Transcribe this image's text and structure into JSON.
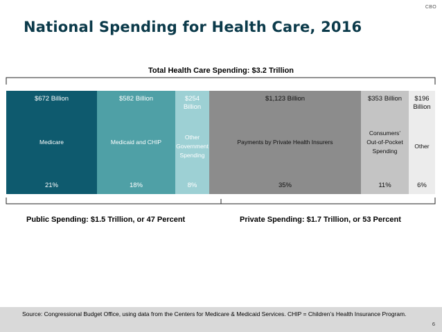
{
  "header": {
    "cbo_tag": "CBO",
    "title": "National Spending for Health Care, 2016"
  },
  "chart_data": {
    "type": "bar",
    "orientation": "stacked-horizontal-100",
    "title": "National Spending for Health Care, 2016",
    "total_label": "Total Health Care Spending: $3.2 Trillion",
    "unit": "billions of dollars",
    "segments": [
      {
        "name": "Medicare",
        "amount_label": "$672 Billion",
        "amount": 672,
        "percent": 21,
        "percent_label": "21%",
        "group": "public",
        "color": "#0e5a6e"
      },
      {
        "name": "Medicaid and CHIP",
        "amount_label": "$582 Billion",
        "amount": 582,
        "percent": 18,
        "percent_label": "18%",
        "group": "public",
        "color": "#4fa0a6"
      },
      {
        "name": "Other Government Spending",
        "name_lines": [
          "Other",
          "Government",
          "Spending"
        ],
        "amount_label": "$254 Billion",
        "amount": 254,
        "percent": 8,
        "percent_label": "8%",
        "group": "public",
        "color": "#9dd0d4"
      },
      {
        "name": "Payments by Private Health Insurers",
        "amount_label": "$1,123 Billion",
        "amount": 1123,
        "percent": 35,
        "percent_label": "35%",
        "group": "private",
        "color": "#8c8c8c"
      },
      {
        "name": "Consumers' Out-of-Pocket Spending",
        "name_lines": [
          "Consumers’",
          "Out-of-Pocket",
          "Spending"
        ],
        "amount_label": "$353 Billion",
        "amount": 353,
        "percent": 11,
        "percent_label": "11%",
        "group": "private",
        "color": "#c4c4c4"
      },
      {
        "name": "Other",
        "amount_label_lines": [
          "$196",
          "Billion"
        ],
        "amount": 196,
        "percent": 6,
        "percent_label": "6%",
        "group": "private",
        "color": "#ececec"
      }
    ],
    "groups": [
      {
        "id": "public",
        "label": "Public Spending: $1.5 Trillion, or 47 Percent"
      },
      {
        "id": "private",
        "label": "Private Spending: $1.7 Trillion, or 53 Percent"
      }
    ]
  },
  "footer": {
    "source": "Source: Congressional Budget Office, using data from the Centers for Medicare & Medicaid Services. CHIP = Children’s Health Insurance Program.",
    "page_number": "6"
  }
}
